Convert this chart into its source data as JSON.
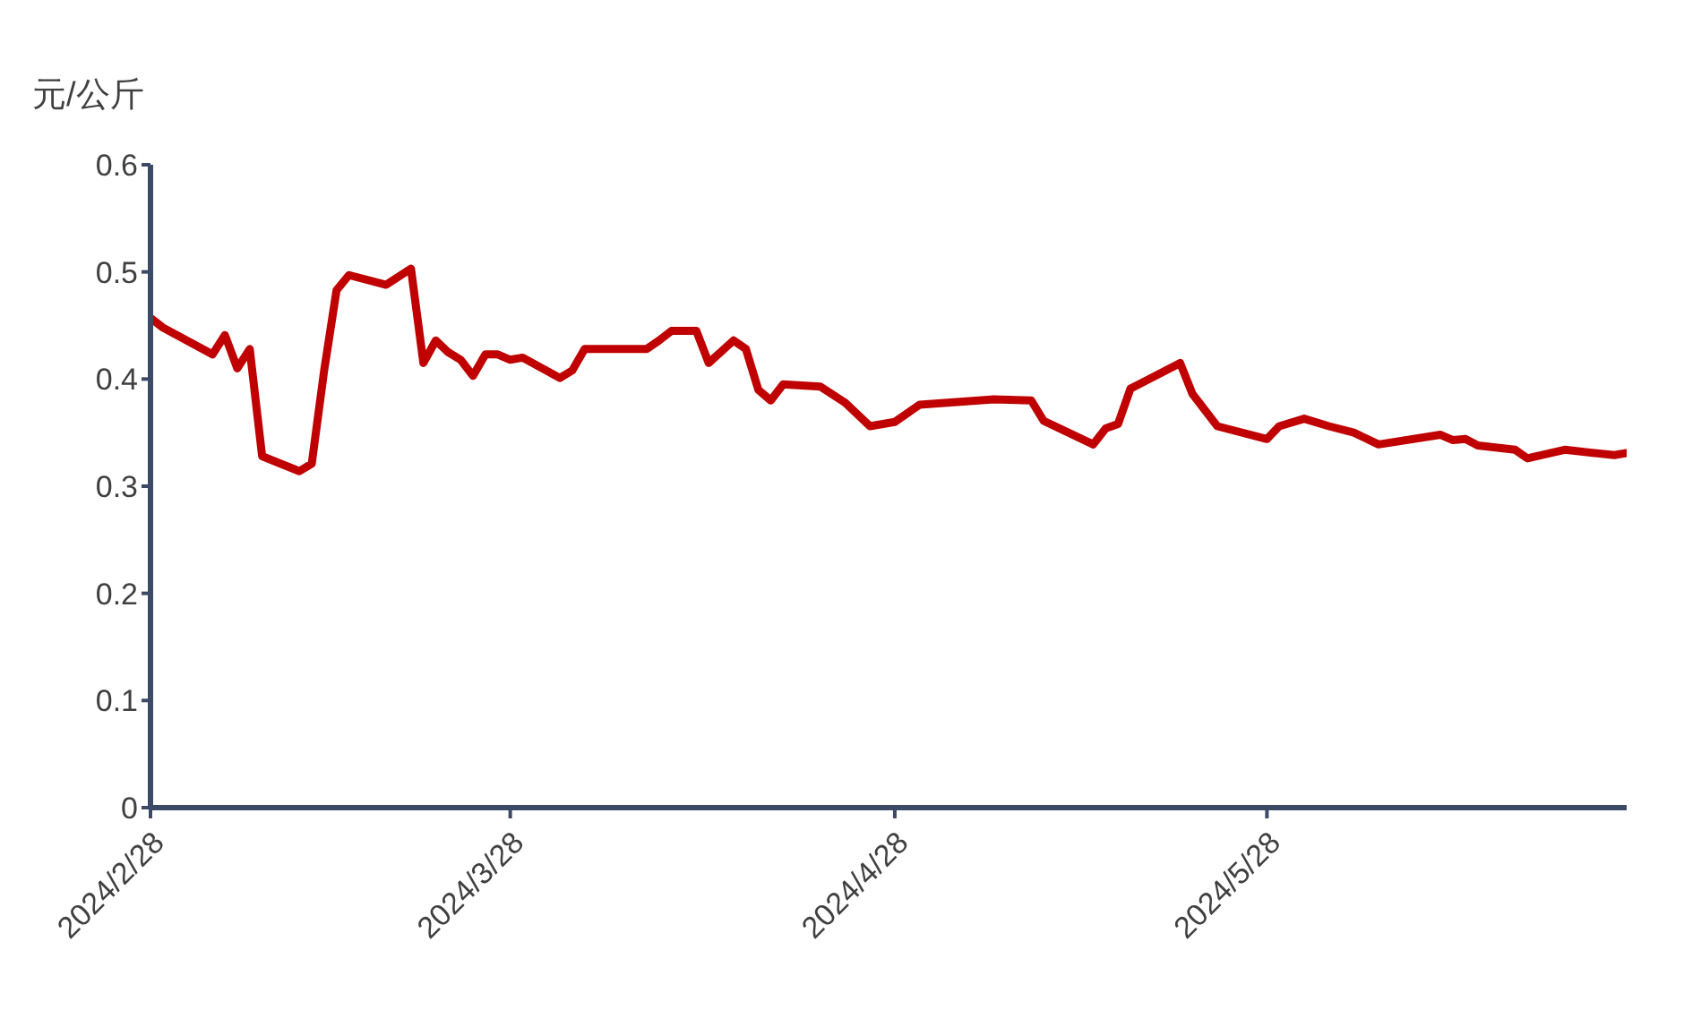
{
  "chart_data": {
    "type": "line",
    "ylabel": "元/公斤",
    "x": [
      "2024-02-28",
      "2024-02-29",
      "2024-03-04",
      "2024-03-05",
      "2024-03-06",
      "2024-03-07",
      "2024-03-08",
      "2024-03-11",
      "2024-03-12",
      "2024-03-13",
      "2024-03-14",
      "2024-03-15",
      "2024-03-18",
      "2024-03-20",
      "2024-03-21",
      "2024-03-22",
      "2024-03-23",
      "2024-03-24",
      "2024-03-25",
      "2024-03-26",
      "2024-03-27",
      "2024-03-28",
      "2024-03-29",
      "2024-04-01",
      "2024-04-02",
      "2024-04-03",
      "2024-04-08",
      "2024-04-09",
      "2024-04-10",
      "2024-04-12",
      "2024-04-13",
      "2024-04-15",
      "2024-04-16",
      "2024-04-17",
      "2024-04-18",
      "2024-04-19",
      "2024-04-22",
      "2024-04-24",
      "2024-04-26",
      "2024-04-28",
      "2024-04-30",
      "2024-05-06",
      "2024-05-09",
      "2024-05-10",
      "2024-05-14",
      "2024-05-15",
      "2024-05-16",
      "2024-05-17",
      "2024-05-21",
      "2024-05-22",
      "2024-05-24",
      "2024-05-28",
      "2024-05-29",
      "2024-05-31",
      "2024-06-02",
      "2024-06-04",
      "2024-06-06",
      "2024-06-11",
      "2024-06-12",
      "2024-06-13",
      "2024-06-14",
      "2024-06-17",
      "2024-06-18",
      "2024-06-21",
      "2024-06-25",
      "2024-06-26"
    ],
    "series": [
      {
        "color": "#c00000",
        "values": [
          0.457,
          0.448,
          0.423,
          0.441,
          0.41,
          0.428,
          0.328,
          0.314,
          0.321,
          0.408,
          0.483,
          0.497,
          0.488,
          0.503,
          0.415,
          0.436,
          0.425,
          0.418,
          0.403,
          0.423,
          0.423,
          0.418,
          0.42,
          0.401,
          0.408,
          0.428,
          0.428,
          0.436,
          0.445,
          0.445,
          0.415,
          0.436,
          0.428,
          0.39,
          0.38,
          0.395,
          0.393,
          0.378,
          0.356,
          0.36,
          0.376,
          0.381,
          0.38,
          0.361,
          0.339,
          0.354,
          0.358,
          0.391,
          0.415,
          0.386,
          0.356,
          0.344,
          0.356,
          0.363,
          0.356,
          0.35,
          0.339,
          0.348,
          0.343,
          0.344,
          0.338,
          0.334,
          0.326,
          0.334,
          0.329,
          0.331
        ]
      }
    ],
    "xlim": [
      "2024-02-28",
      "2024-06-26"
    ],
    "xticks": [
      {
        "value": "2024-02-28",
        "label": "2024/2/28"
      },
      {
        "value": "2024-03-28",
        "label": "2024/3/28"
      },
      {
        "value": "2024-04-28",
        "label": "2024/4/28"
      },
      {
        "value": "2024-05-28",
        "label": "2024/5/28"
      }
    ],
    "ylim": [
      0,
      0.6
    ],
    "yticks": [
      0,
      0.1,
      0.2,
      0.3,
      0.4,
      0.5,
      0.6
    ],
    "grid": false,
    "legend": false,
    "marker": "none",
    "line_style": "solid"
  }
}
